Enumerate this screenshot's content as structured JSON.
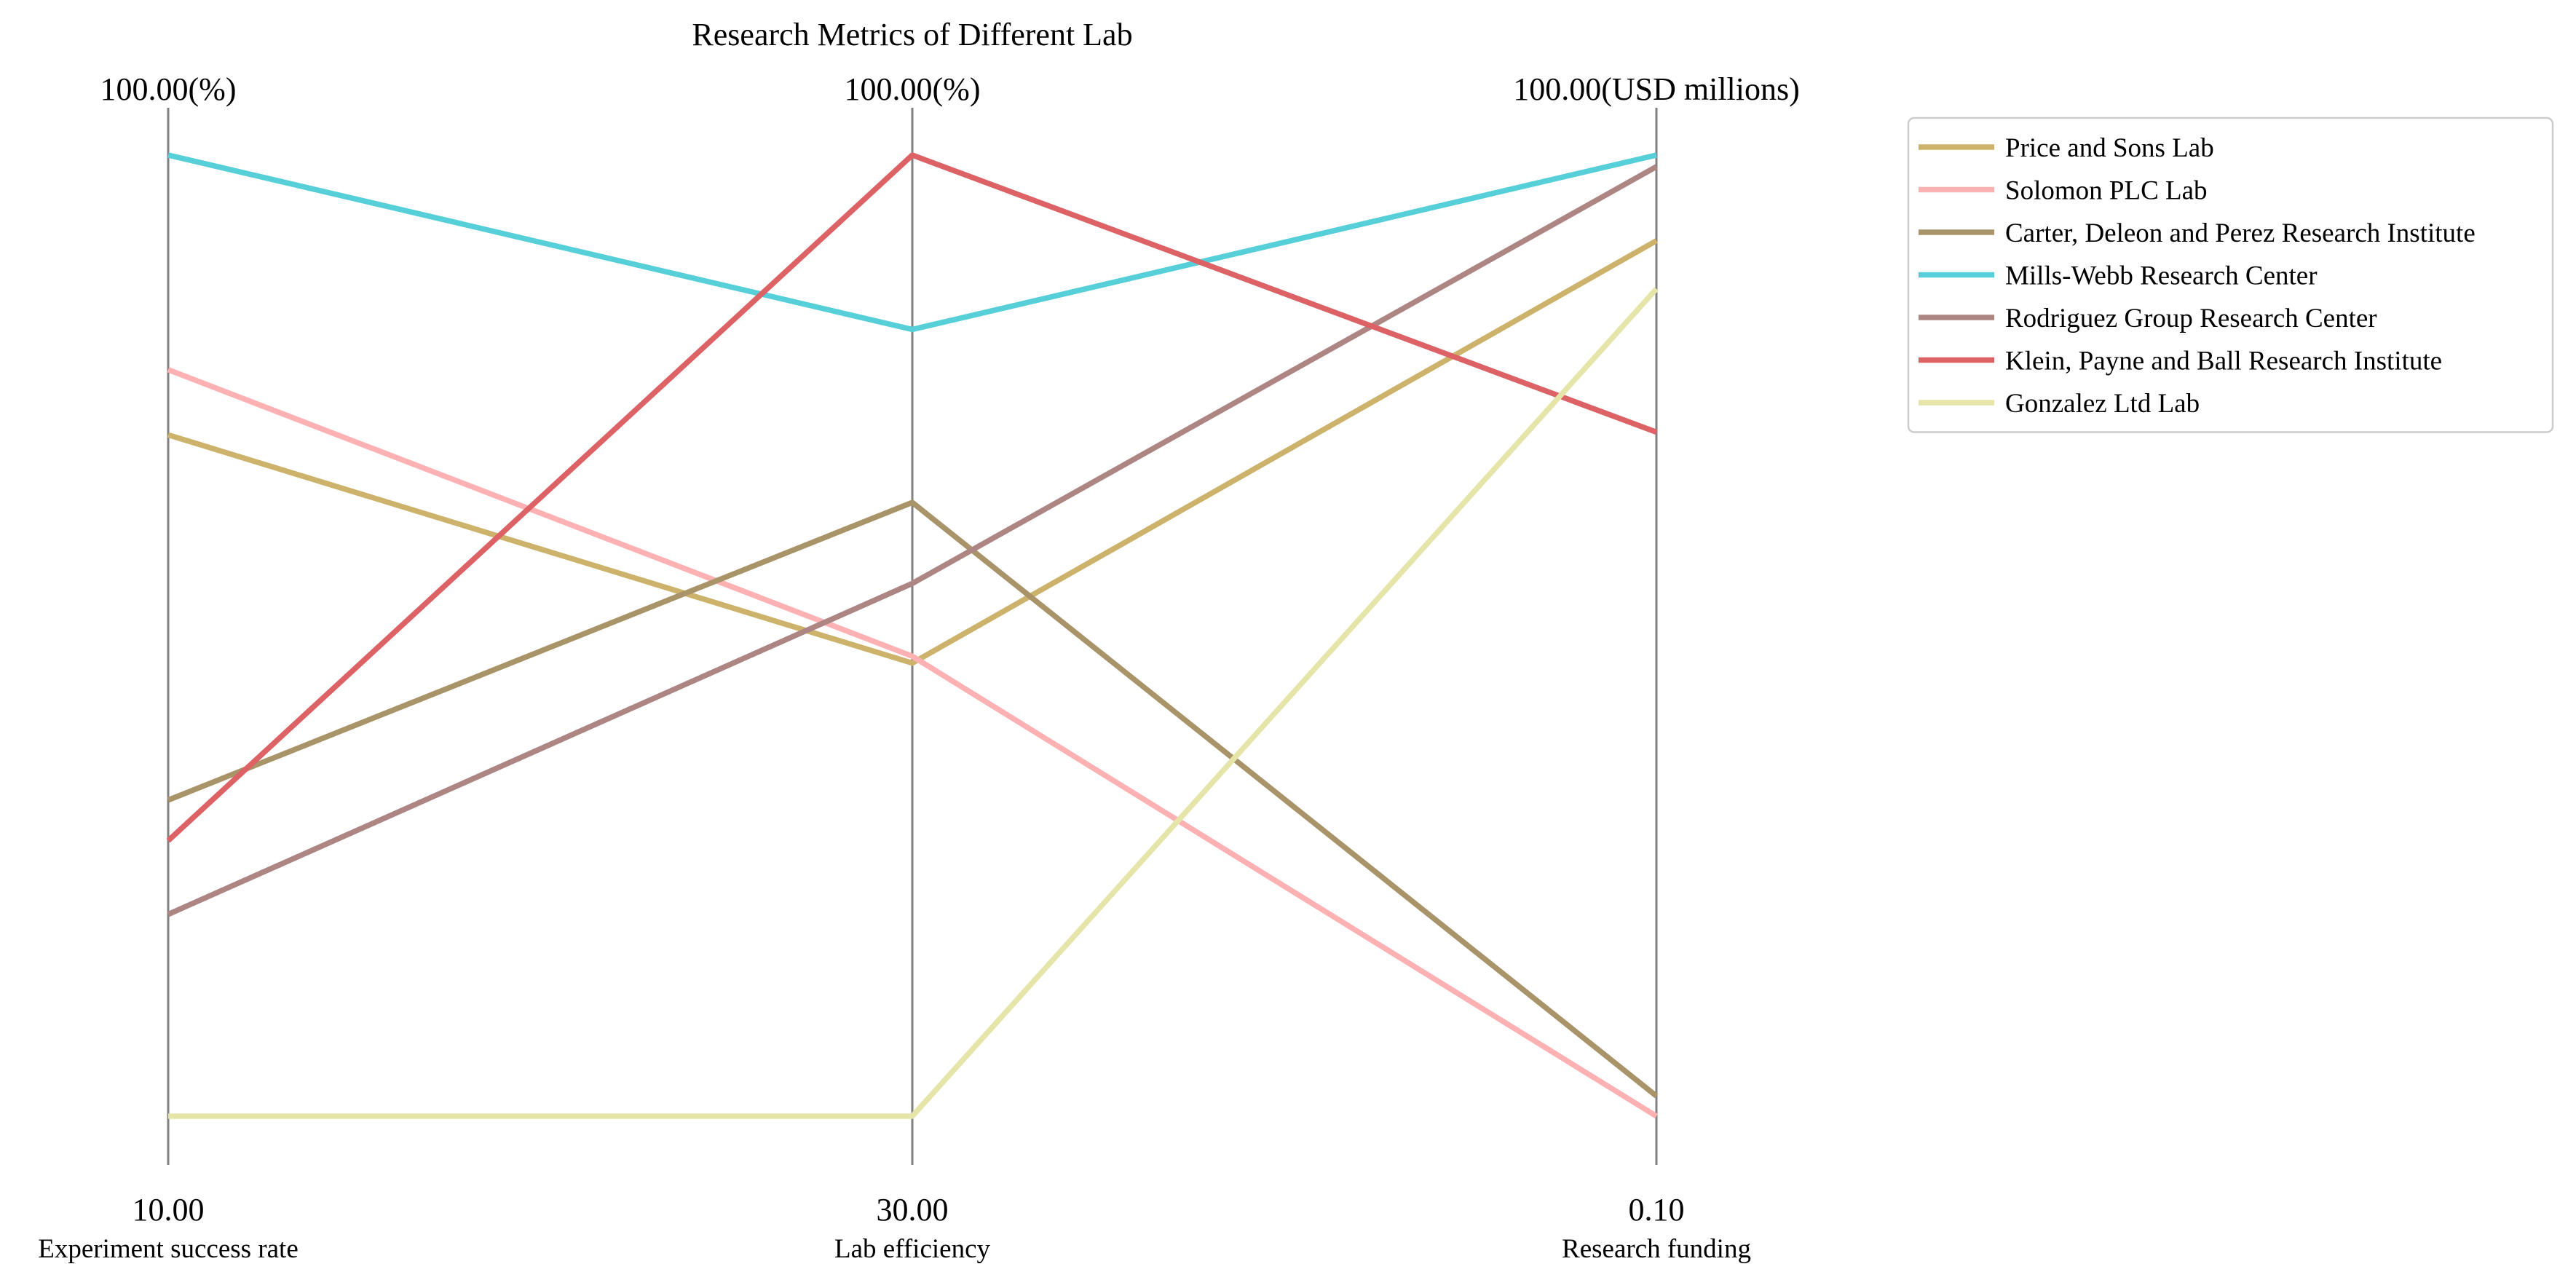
{
  "chart_data": {
    "type": "parallel_coordinates",
    "title": "Research Metrics of Different Lab",
    "axes": [
      {
        "label": "Experiment success rate",
        "min_label": "10.00",
        "max_label": "100.00(%)",
        "min": 10,
        "max": 100
      },
      {
        "label": "Lab efficiency",
        "min_label": "30.00",
        "max_label": "100.00(%)",
        "min": 30,
        "max": 100
      },
      {
        "label": "Research funding",
        "min_label": "0.10",
        "max_label": "100.00(USD millions)",
        "min": 0.1,
        "max": 100
      }
    ],
    "series": [
      {
        "name": "Price and Sons  Lab",
        "color": "#cdb26b",
        "values": [
          73.8,
          63.0,
          91.1
        ]
      },
      {
        "name": "Solomon PLC  Lab",
        "color": "#fdb1b3",
        "values": [
          79.9,
          63.5,
          0.1
        ]
      },
      {
        "name": "Carter, Deleon and Perez  Research Institute",
        "color": "#a99469",
        "values": [
          39.6,
          74.7,
          2.2
        ]
      },
      {
        "name": "Mills-Webb  Research Center",
        "color": "#57cfd8",
        "values": [
          100.0,
          87.3,
          100.0
        ]
      },
      {
        "name": "Rodriguez Group  Research Center",
        "color": "#ad8582",
        "values": [
          28.9,
          68.8,
          98.8
        ]
      },
      {
        "name": "Klein, Payne and Ball  Research Institute",
        "color": "#dc6266",
        "values": [
          35.8,
          100.0,
          71.2
        ]
      },
      {
        "name": "Gonzalez Ltd  Lab",
        "color": "#e5e5a9",
        "values": [
          10.0,
          30.0,
          86.1
        ]
      }
    ],
    "legend_position": "top-right",
    "grid": false
  }
}
